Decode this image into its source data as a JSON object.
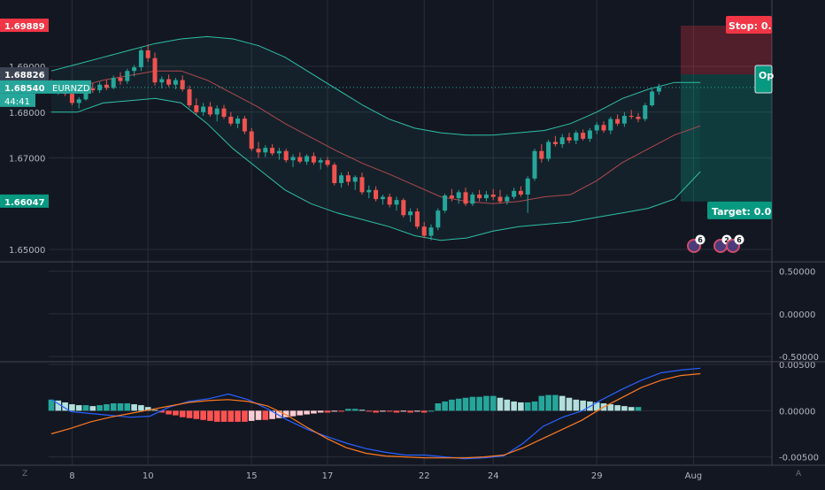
{
  "symbol": "EURNZD",
  "countdown": "44:41",
  "colors": {
    "bg": "#131722",
    "grid": "#2a2e39",
    "up": "#26a69a",
    "down": "#ef5350",
    "bb": "#2fbfa6",
    "basis": "#b0484f",
    "macd": "#2962ff",
    "signal": "#ff7a21",
    "stop": "#f23645",
    "target": "#089981",
    "current": "#26a69a"
  },
  "chart_data": [
    {
      "type": "candlestick",
      "name": "price-pane",
      "ylim": [
        1.6475,
        1.7045
      ],
      "yticks": [
        "1.70000 (partially hidden)",
        "1.69000",
        "1.68000",
        "1.67000",
        "1.65000"
      ],
      "y_tick_labels": [
        {
          "value": 1.69,
          "label": "1.69000"
        },
        {
          "value": 1.68,
          "label": "1.68000"
        },
        {
          "value": 1.67,
          "label": "1.67000"
        },
        {
          "value": 1.65,
          "label": "1.65000"
        }
      ],
      "price_labels": [
        {
          "value": 1.69889,
          "label": "1.69889",
          "color": "#f23645"
        },
        {
          "value": 1.68826,
          "label": "1.68826",
          "color": "#3b4252"
        },
        {
          "value": 1.6854,
          "label": "1.68540",
          "color": "#26a69a"
        },
        {
          "value": 1.66047,
          "label": "1.66047",
          "color": "#089981"
        }
      ],
      "x_tick_labels": [
        {
          "index": 3,
          "label": "8"
        },
        {
          "index": 14,
          "label": "10"
        },
        {
          "index": 29,
          "label": "15"
        },
        {
          "index": 40,
          "label": "17"
        },
        {
          "index": 54,
          "label": "22"
        },
        {
          "index": 64,
          "label": "24"
        },
        {
          "index": 79,
          "label": "29"
        },
        {
          "index": 93,
          "label": "Aug"
        }
      ],
      "candles_ohlc": [
        [
          1.6862,
          1.6872,
          1.6842,
          1.6848
        ],
        [
          1.6848,
          1.686,
          1.6838,
          1.6855
        ],
        [
          1.6855,
          1.6862,
          1.6835,
          1.684
        ],
        [
          1.684,
          1.685,
          1.6815,
          1.682
        ],
        [
          1.682,
          1.6833,
          1.6808,
          1.6828
        ],
        [
          1.6828,
          1.6857,
          1.6825,
          1.6852
        ],
        [
          1.6852,
          1.6863,
          1.6842,
          1.6848
        ],
        [
          1.6848,
          1.6866,
          1.6842,
          1.686
        ],
        [
          1.686,
          1.687,
          1.6848,
          1.6853
        ],
        [
          1.6853,
          1.688,
          1.685,
          1.6875
        ],
        [
          1.6875,
          1.6887,
          1.686,
          1.6868
        ],
        [
          1.6868,
          1.6895,
          1.6862,
          1.689
        ],
        [
          1.689,
          1.6903,
          1.6878,
          1.6898
        ],
        [
          1.6898,
          1.694,
          1.689,
          1.6935
        ],
        [
          1.6935,
          1.6948,
          1.691,
          1.6918
        ],
        [
          1.6918,
          1.693,
          1.6858,
          1.6865
        ],
        [
          1.6865,
          1.6878,
          1.6852,
          1.6872
        ],
        [
          1.6872,
          1.6882,
          1.6855,
          1.686
        ],
        [
          1.686,
          1.6875,
          1.685,
          1.687
        ],
        [
          1.687,
          1.688,
          1.6845,
          1.685
        ],
        [
          1.685,
          1.6858,
          1.681,
          1.6815
        ],
        [
          1.6815,
          1.683,
          1.6795,
          1.68
        ],
        [
          1.68,
          1.682,
          1.6792,
          1.6812
        ],
        [
          1.6812,
          1.6822,
          1.679,
          1.6795
        ],
        [
          1.6795,
          1.6815,
          1.678,
          1.6808
        ],
        [
          1.6808,
          1.6816,
          1.6785,
          1.679
        ],
        [
          1.679,
          1.68,
          1.677,
          1.6775
        ],
        [
          1.6775,
          1.6792,
          1.6765,
          1.6786
        ],
        [
          1.6786,
          1.6792,
          1.6752,
          1.6758
        ],
        [
          1.6758,
          1.6765,
          1.6715,
          1.672
        ],
        [
          1.672,
          1.6735,
          1.67,
          1.6712
        ],
        [
          1.6712,
          1.6728,
          1.6702,
          1.6722
        ],
        [
          1.6722,
          1.673,
          1.6705,
          1.671
        ],
        [
          1.671,
          1.6722,
          1.6696,
          1.6715
        ],
        [
          1.6715,
          1.672,
          1.669,
          1.6695
        ],
        [
          1.6695,
          1.6708,
          1.668,
          1.6702
        ],
        [
          1.6702,
          1.6712,
          1.6688,
          1.6692
        ],
        [
          1.6692,
          1.6708,
          1.6685,
          1.6704
        ],
        [
          1.6704,
          1.6712,
          1.6685,
          1.669
        ],
        [
          1.669,
          1.67,
          1.6675,
          1.6695
        ],
        [
          1.6695,
          1.6702,
          1.668,
          1.6685
        ],
        [
          1.6685,
          1.669,
          1.664,
          1.6645
        ],
        [
          1.6645,
          1.6668,
          1.6635,
          1.6662
        ],
        [
          1.6662,
          1.667,
          1.664,
          1.6648
        ],
        [
          1.6648,
          1.6662,
          1.663,
          1.6658
        ],
        [
          1.6658,
          1.6668,
          1.662,
          1.6625
        ],
        [
          1.6625,
          1.664,
          1.6612,
          1.663
        ],
        [
          1.663,
          1.6638,
          1.6605,
          1.661
        ],
        [
          1.661,
          1.662,
          1.6598,
          1.6615
        ],
        [
          1.6615,
          1.6622,
          1.6592,
          1.6598
        ],
        [
          1.6598,
          1.6615,
          1.6585,
          1.6608
        ],
        [
          1.6608,
          1.6612,
          1.657,
          1.6575
        ],
        [
          1.6575,
          1.659,
          1.656,
          1.6583
        ],
        [
          1.6583,
          1.659,
          1.6545,
          1.655
        ],
        [
          1.655,
          1.656,
          1.6525,
          1.653
        ],
        [
          1.653,
          1.6555,
          1.652,
          1.6548
        ],
        [
          1.6548,
          1.659,
          1.6542,
          1.6585
        ],
        [
          1.6585,
          1.6622,
          1.658,
          1.6618
        ],
        [
          1.6618,
          1.6632,
          1.6605,
          1.6612
        ],
        [
          1.6612,
          1.663,
          1.66,
          1.6625
        ],
        [
          1.6625,
          1.6635,
          1.6595,
          1.66
        ],
        [
          1.66,
          1.6625,
          1.6595,
          1.662
        ],
        [
          1.662,
          1.663,
          1.6605,
          1.6612
        ],
        [
          1.6612,
          1.6628,
          1.6605,
          1.662
        ],
        [
          1.662,
          1.6632,
          1.6608,
          1.6615
        ],
        [
          1.6615,
          1.663,
          1.66,
          1.6605
        ],
        [
          1.6605,
          1.662,
          1.6598,
          1.6615
        ],
        [
          1.6615,
          1.6635,
          1.661,
          1.6628
        ],
        [
          1.6628,
          1.6638,
          1.6615,
          1.662
        ],
        [
          1.662,
          1.666,
          1.658,
          1.6655
        ],
        [
          1.6655,
          1.672,
          1.665,
          1.6715
        ],
        [
          1.6715,
          1.673,
          1.669,
          1.6698
        ],
        [
          1.6698,
          1.674,
          1.6692,
          1.6735
        ],
        [
          1.6735,
          1.6748,
          1.6725,
          1.673
        ],
        [
          1.673,
          1.6752,
          1.6722,
          1.6745
        ],
        [
          1.6745,
          1.6755,
          1.6732,
          1.6738
        ],
        [
          1.6738,
          1.676,
          1.673,
          1.6755
        ],
        [
          1.6755,
          1.6762,
          1.6738,
          1.6742
        ],
        [
          1.6742,
          1.6765,
          1.6735,
          1.676
        ],
        [
          1.676,
          1.6778,
          1.6752,
          1.6772
        ],
        [
          1.6772,
          1.678,
          1.6755,
          1.676
        ],
        [
          1.676,
          1.679,
          1.6752,
          1.6785
        ],
        [
          1.6785,
          1.6795,
          1.677,
          1.6775
        ],
        [
          1.6775,
          1.68,
          1.6768,
          1.6792
        ],
        [
          1.6792,
          1.6805,
          1.6785,
          1.679
        ],
        [
          1.679,
          1.6798,
          1.6778,
          1.6785
        ],
        [
          1.6785,
          1.682,
          1.678,
          1.6815
        ],
        [
          1.6815,
          1.685,
          1.6812,
          1.6845
        ],
        [
          1.6845,
          1.6862,
          1.6838,
          1.6854
        ]
      ],
      "bollinger": {
        "upper": [
          1.689,
          1.6905,
          1.692,
          1.6935,
          1.695,
          1.696,
          1.6965,
          1.696,
          1.6945,
          1.692,
          1.6885,
          1.685,
          1.6815,
          1.6785,
          1.6765,
          1.6755,
          1.675,
          1.675,
          1.6755,
          1.676,
          1.6775,
          1.68,
          1.683,
          1.685,
          1.6865,
          1.6865
        ],
        "basis": [
          1.6845,
          1.6855,
          1.687,
          1.688,
          1.689,
          1.689,
          1.687,
          1.684,
          1.681,
          1.6775,
          1.6745,
          1.6715,
          1.6688,
          1.6665,
          1.664,
          1.6615,
          1.6605,
          1.66,
          1.6605,
          1.6615,
          1.662,
          1.665,
          1.669,
          1.672,
          1.675,
          1.677
        ],
        "lower": [
          1.68,
          1.68,
          1.682,
          1.6825,
          1.683,
          1.682,
          1.6775,
          1.672,
          1.6675,
          1.663,
          1.66,
          1.658,
          1.6565,
          1.655,
          1.653,
          1.652,
          1.6525,
          1.654,
          1.655,
          1.6555,
          1.656,
          1.657,
          1.658,
          1.659,
          1.661,
          1.667
        ]
      },
      "position": {
        "stop_label": "Stop: 0.",
        "target_label": "Target: 0.0",
        "open_label": "Op",
        "stop": 1.69889,
        "entry": 1.68826,
        "target": 1.66047
      }
    },
    {
      "type": "line",
      "name": "oscillator-pane",
      "ylim": [
        -0.55,
        0.6
      ],
      "y_tick_labels": [
        {
          "value": 0.5,
          "label": "0.50000"
        },
        {
          "value": 0.0,
          "label": "0.00000"
        },
        {
          "value": -0.5,
          "label": "-0.50000"
        }
      ]
    },
    {
      "type": "bar",
      "name": "macd-pane",
      "ylim": [
        -0.0058,
        0.0052
      ],
      "y_tick_labels": [
        {
          "value": 0.005,
          "label": "0.00500"
        },
        {
          "value": 0.0,
          "label": "0.00000"
        },
        {
          "value": -0.005,
          "label": "-0.00500"
        }
      ],
      "histogram": [
        0.0012,
        0.0011,
        0.0009,
        0.0007,
        0.0006,
        0.0006,
        0.0005,
        0.0006,
        0.0007,
        0.0008,
        0.0008,
        0.0008,
        0.0007,
        0.0006,
        0.0004,
        0.0001,
        -0.0002,
        -0.0004,
        -0.0005,
        -0.0007,
        -0.0008,
        -0.0009,
        -0.001,
        -0.0011,
        -0.0012,
        -0.0012,
        -0.0012,
        -0.0012,
        -0.0012,
        -0.0011,
        -0.001,
        -0.001,
        -0.0009,
        -0.0008,
        -0.0007,
        -0.0006,
        -0.0005,
        -0.0004,
        -0.0003,
        -0.0002,
        -0.0002,
        -0.0001,
        -0.0001,
        0.0002,
        0.0002,
        0.0001,
        -0.0001,
        -0.0002,
        -0.0001,
        -0.0001,
        -0.0002,
        -0.0001,
        -0.0002,
        -0.0001,
        -0.0002,
        0.0,
        0.0008,
        0.001,
        0.0012,
        0.0013,
        0.0014,
        0.0015,
        0.0015,
        0.0016,
        0.0016,
        0.0014,
        0.0012,
        0.001,
        0.0009,
        0.0009,
        0.001,
        0.0016,
        0.0017,
        0.0017,
        0.0016,
        0.0014,
        0.0012,
        0.0011,
        0.001,
        0.0009,
        0.0008,
        0.0007,
        0.0006,
        0.0005,
        0.0004,
        0.0004
      ],
      "macd": [
        0.0012,
        -0.0001,
        -0.0003,
        -0.0005,
        -0.0007,
        -0.0006,
        0.0004,
        0.001,
        0.0013,
        0.0018,
        0.0012,
        0.0002,
        -0.001,
        -0.002,
        -0.0028,
        -0.0035,
        -0.0041,
        -0.0045,
        -0.0048,
        -0.0048,
        -0.005,
        -0.0052,
        -0.0051,
        -0.0049,
        -0.0035,
        -0.0017,
        -0.0007,
        0.0,
        0.0012,
        0.0023,
        0.0033,
        0.0041,
        0.0044,
        0.0046
      ],
      "signal": [
        -0.0025,
        -0.0019,
        -0.0012,
        -0.0007,
        -0.0003,
        0.0001,
        0.0005,
        0.0009,
        0.0011,
        0.0012,
        0.001,
        0.0005,
        -0.0005,
        -0.0018,
        -0.003,
        -0.004,
        -0.0046,
        -0.0049,
        -0.005,
        -0.0051,
        -0.0051,
        -0.0051,
        -0.005,
        -0.0048,
        -0.004,
        -0.003,
        -0.002,
        -0.001,
        0.0003,
        0.0014,
        0.0025,
        0.0033,
        0.0038,
        0.004
      ]
    }
  ],
  "chart_labels": {
    "x": [
      "8",
      "10",
      "15",
      "17",
      "22",
      "24",
      "29",
      "Aug"
    ],
    "price_y": [
      "1.69000",
      "1.68000",
      "1.67000",
      "1.65000"
    ],
    "osc_y": [
      "0.50000",
      "0.00000",
      "-0.50000"
    ],
    "macd_y": [
      "0.00500",
      "0.00000",
      "-0.00500"
    ]
  },
  "event_badges": [
    "6",
    "2",
    "6"
  ],
  "corner_left": "Z",
  "corner_right": "A"
}
